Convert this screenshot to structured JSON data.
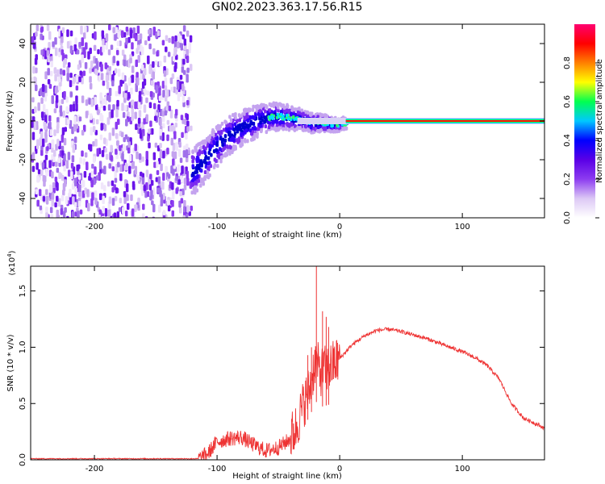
{
  "title": "GN02.2023.363.17.56.R15",
  "chart_data": [
    {
      "type": "heatmap",
      "xlabel": "Height of straight line (km)",
      "ylabel": "Frequency (Hz)",
      "xlim": [
        -252,
        167
      ],
      "ylim": [
        -50,
        50
      ],
      "x_ticks": [
        -200,
        -100,
        0,
        100
      ],
      "y_ticks": [
        -40,
        -20,
        0,
        20,
        40
      ],
      "colorbar": {
        "label": "Normalized spectral amplitude",
        "range": [
          0,
          1
        ],
        "ticks": [
          "0.0",
          "0.2",
          "0.4",
          "0.6",
          "0.8"
        ],
        "colors": [
          "#ffffff",
          "#dcc8f5",
          "#8c3cf0",
          "#5a00e6",
          "#0000ff",
          "#00c8ff",
          "#00ff50",
          "#ffff00",
          "#ff8000",
          "#ff0000",
          "#ff0070"
        ]
      },
      "features": {
        "noise_region_x": [
          -252,
          -122
        ],
        "tone_frequency_hz": 0,
        "tone_start_km": 5,
        "trace": [
          {
            "x": -122,
            "y": -26
          },
          {
            "x": -112,
            "y": -20
          },
          {
            "x": -104,
            "y": -14
          },
          {
            "x": -95,
            "y": -8
          },
          {
            "x": -85,
            "y": -4
          },
          {
            "x": -75,
            "y": -1
          },
          {
            "x": -65,
            "y": 2
          },
          {
            "x": -55,
            "y": 3
          },
          {
            "x": -45,
            "y": 3
          },
          {
            "x": -35,
            "y": 2
          },
          {
            "x": -25,
            "y": 0
          },
          {
            "x": -15,
            "y": 0
          },
          {
            "x": -5,
            "y": -1
          },
          {
            "x": 5,
            "y": 0
          }
        ]
      }
    },
    {
      "type": "line",
      "xlabel": "Height of straight line (km)",
      "ylabel": "SNR (10 * v/v)",
      "y_multiplier": "(x10",
      "y_multiplier_exp": "4",
      "xlim": [
        -252,
        167
      ],
      "ylim": [
        0,
        1.72
      ],
      "x_ticks": [
        -200,
        -100,
        0,
        100
      ],
      "y_ticks": [
        "0.0",
        "0.5",
        "1.0",
        "1.5"
      ],
      "color": "#ee3333",
      "series": [
        {
          "x": [
            -252,
            -200,
            -150,
            -115,
            -108,
            -100,
            -90,
            -80,
            -70,
            -60,
            -50,
            -42,
            -36,
            -30,
            -24,
            -20,
            -16,
            -12,
            -8,
            0,
            10,
            20,
            30,
            40,
            50,
            60,
            70,
            80,
            90,
            100,
            110,
            120,
            130,
            140,
            150,
            160,
            167
          ],
          "y": [
            0.01,
            0.01,
            0.01,
            0.01,
            0.05,
            0.16,
            0.19,
            0.2,
            0.13,
            0.08,
            0.11,
            0.17,
            0.27,
            0.48,
            0.65,
            0.88,
            0.78,
            0.8,
            0.82,
            0.9,
            1.02,
            1.1,
            1.15,
            1.16,
            1.14,
            1.11,
            1.08,
            1.04,
            1.0,
            0.96,
            0.91,
            0.84,
            0.72,
            0.5,
            0.37,
            0.32,
            0.28
          ]
        }
      ],
      "spikes": [
        {
          "x": -19,
          "y": 1.72
        },
        {
          "x": -14,
          "y": 1.32
        },
        {
          "x": -11,
          "y": 1.27
        },
        {
          "x": -9,
          "y": 1.18
        },
        {
          "x": -23,
          "y": 1.0
        },
        {
          "x": -26,
          "y": 0.93
        }
      ]
    }
  ]
}
